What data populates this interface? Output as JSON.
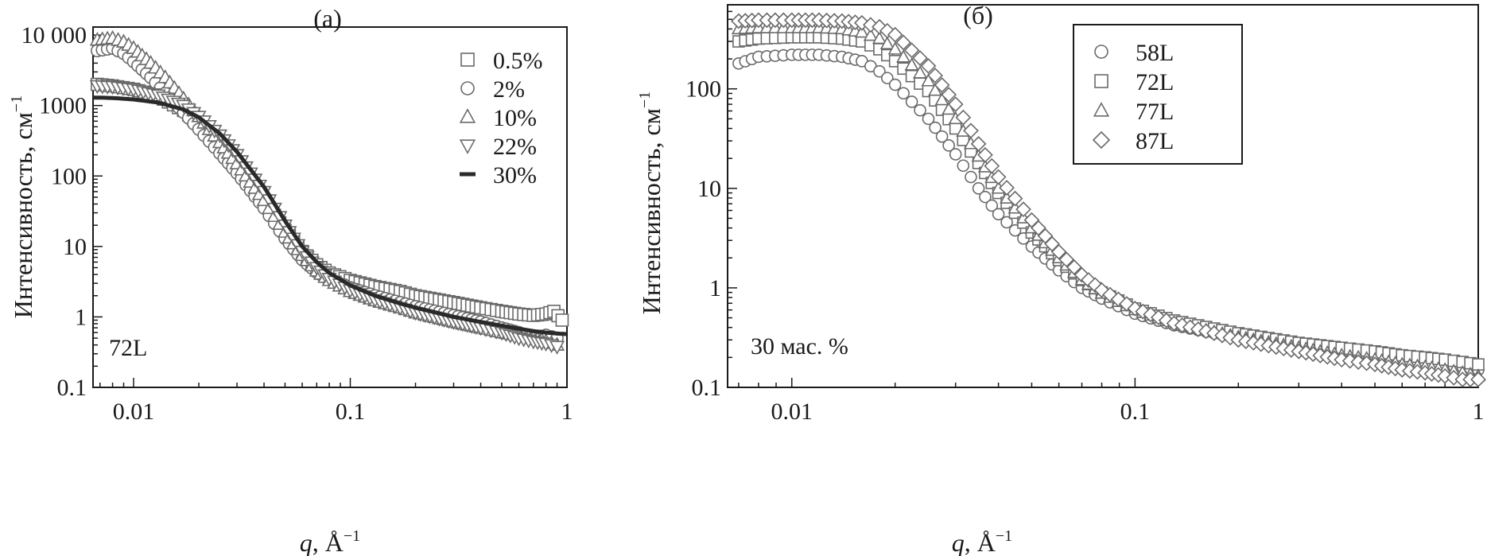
{
  "figure": {
    "colors": {
      "axis": "#1a1a1a",
      "marker": "#6a6a6a",
      "marker_fill": "#ffffff",
      "line": "#2a2a2a"
    }
  },
  "chart_data": [
    {
      "type": "scatter",
      "panel_label": "(а)",
      "annotation": "72L",
      "xlabel_italic": "q",
      "xlabel_rest": ", Å",
      "xlabel_exp": "−1",
      "ylabel": "Интенсивность, см",
      "ylabel_exp": "−1",
      "xscale": "log",
      "yscale": "log",
      "xlim": [
        0.0065,
        1.0
      ],
      "ylim": [
        0.1,
        13000
      ],
      "xticks": [
        {
          "v": 0.01,
          "label": "0.01"
        },
        {
          "v": 0.1,
          "label": "0.1"
        },
        {
          "v": 1,
          "label": "1"
        }
      ],
      "yticks": [
        {
          "v": 0.1,
          "label": "0.1"
        },
        {
          "v": 1,
          "label": "1"
        },
        {
          "v": 10,
          "label": "10"
        },
        {
          "v": 100,
          "label": "100"
        },
        {
          "v": 1000,
          "label": "1000"
        },
        {
          "v": 10000,
          "label": "10 000"
        }
      ],
      "legend_position": "top-right",
      "series": [
        {
          "name": "0.5%",
          "marker": "square",
          "points": [
            [
              0.0068,
              2000
            ],
            [
              0.008,
              1900
            ],
            [
              0.01,
              1700
            ],
            [
              0.013,
              1350
            ],
            [
              0.017,
              850
            ],
            [
              0.02,
              550
            ],
            [
              0.025,
              280
            ],
            [
              0.03,
              140
            ],
            [
              0.04,
              45
            ],
            [
              0.05,
              17
            ],
            [
              0.06,
              8.5
            ],
            [
              0.07,
              5.5
            ],
            [
              0.08,
              4.2
            ],
            [
              0.1,
              3.3
            ],
            [
              0.13,
              2.7
            ],
            [
              0.17,
              2.3
            ],
            [
              0.2,
              2.0
            ],
            [
              0.3,
              1.6
            ],
            [
              0.4,
              1.35
            ],
            [
              0.5,
              1.2
            ],
            [
              0.6,
              1.1
            ],
            [
              0.7,
              1.05
            ],
            [
              0.8,
              1.1
            ],
            [
              0.87,
              1.2
            ],
            [
              0.95,
              0.9
            ]
          ]
        },
        {
          "name": "2%",
          "marker": "circle",
          "points": [
            [
              0.0068,
              6000
            ],
            [
              0.008,
              6500
            ],
            [
              0.009,
              5500
            ],
            [
              0.01,
              4200
            ],
            [
              0.012,
              2500
            ],
            [
              0.014,
              1500
            ],
            [
              0.017,
              800
            ],
            [
              0.02,
              460
            ],
            [
              0.025,
              210
            ],
            [
              0.03,
              110
            ],
            [
              0.04,
              35
            ],
            [
              0.05,
              13
            ],
            [
              0.06,
              6.5
            ],
            [
              0.07,
              4.3
            ],
            [
              0.08,
              3.4
            ],
            [
              0.1,
              2.6
            ],
            [
              0.13,
              2.0
            ],
            [
              0.17,
              1.6
            ],
            [
              0.2,
              1.4
            ],
            [
              0.3,
              1.05
            ],
            [
              0.4,
              0.85
            ],
            [
              0.5,
              0.7
            ],
            [
              0.6,
              0.6
            ],
            [
              0.7,
              0.5
            ],
            [
              0.8,
              0.55
            ],
            [
              0.9,
              0.5
            ]
          ]
        },
        {
          "name": "10%",
          "marker": "triangle-up",
          "points": [
            [
              0.0068,
              8500
            ],
            [
              0.008,
              9000
            ],
            [
              0.009,
              8000
            ],
            [
              0.01,
              6500
            ],
            [
              0.012,
              4000
            ],
            [
              0.014,
              2500
            ],
            [
              0.017,
              1250
            ],
            [
              0.02,
              700
            ],
            [
              0.025,
              300
            ],
            [
              0.03,
              150
            ],
            [
              0.04,
              45
            ],
            [
              0.05,
              16
            ],
            [
              0.06,
              7.5
            ],
            [
              0.07,
              4.5
            ],
            [
              0.08,
              3.3
            ],
            [
              0.1,
              2.3
            ],
            [
              0.13,
              1.7
            ],
            [
              0.17,
              1.35
            ],
            [
              0.2,
              1.15
            ],
            [
              0.3,
              0.85
            ],
            [
              0.4,
              0.7
            ],
            [
              0.5,
              0.6
            ],
            [
              0.6,
              0.55
            ],
            [
              0.7,
              0.5
            ],
            [
              0.8,
              0.45
            ],
            [
              0.9,
              0.4
            ]
          ]
        },
        {
          "name": "22%",
          "marker": "triangle-down",
          "points": [
            [
              0.0068,
              1900
            ],
            [
              0.008,
              1850
            ],
            [
              0.01,
              1700
            ],
            [
              0.013,
              1400
            ],
            [
              0.017,
              1000
            ],
            [
              0.02,
              700
            ],
            [
              0.025,
              380
            ],
            [
              0.03,
              200
            ],
            [
              0.04,
              60
            ],
            [
              0.05,
              20
            ],
            [
              0.06,
              8.5
            ],
            [
              0.07,
              5.0
            ],
            [
              0.08,
              3.5
            ],
            [
              0.1,
              2.4
            ],
            [
              0.13,
              1.75
            ],
            [
              0.17,
              1.35
            ],
            [
              0.2,
              1.15
            ],
            [
              0.3,
              0.85
            ],
            [
              0.4,
              0.7
            ],
            [
              0.5,
              0.6
            ],
            [
              0.6,
              0.5
            ],
            [
              0.7,
              0.45
            ],
            [
              0.8,
              0.42
            ],
            [
              0.9,
              0.38
            ]
          ]
        },
        {
          "name": "30%",
          "marker": "line",
          "points": [
            [
              0.0065,
              1300
            ],
            [
              0.008,
              1280
            ],
            [
              0.01,
              1220
            ],
            [
              0.013,
              1100
            ],
            [
              0.017,
              880
            ],
            [
              0.02,
              680
            ],
            [
              0.025,
              400
            ],
            [
              0.03,
              220
            ],
            [
              0.04,
              70
            ],
            [
              0.05,
              23
            ],
            [
              0.06,
              10
            ],
            [
              0.07,
              6.0
            ],
            [
              0.08,
              4.2
            ],
            [
              0.1,
              2.8
            ],
            [
              0.13,
              2.0
            ],
            [
              0.17,
              1.55
            ],
            [
              0.2,
              1.35
            ],
            [
              0.3,
              1.0
            ],
            [
              0.4,
              0.85
            ],
            [
              0.5,
              0.75
            ],
            [
              0.6,
              0.68
            ],
            [
              0.7,
              0.63
            ],
            [
              0.8,
              0.6
            ],
            [
              0.9,
              0.58
            ],
            [
              1.0,
              0.57
            ]
          ]
        }
      ]
    },
    {
      "type": "scatter",
      "panel_label": "(б)",
      "annotation": "30 мас. %",
      "xlabel_italic": "q",
      "xlabel_rest": ", Å",
      "xlabel_exp": "−1",
      "ylabel": "Интенсивность, см",
      "ylabel_exp": "−1",
      "xscale": "log",
      "yscale": "log",
      "xlim": [
        0.0065,
        1.0
      ],
      "ylim": [
        0.1,
        700
      ],
      "xticks": [
        {
          "v": 0.01,
          "label": "0.01"
        },
        {
          "v": 0.1,
          "label": "0.1"
        },
        {
          "v": 1,
          "label": "1"
        }
      ],
      "yticks": [
        {
          "v": 0.1,
          "label": "0.1"
        },
        {
          "v": 1,
          "label": "1"
        },
        {
          "v": 10,
          "label": "10"
        },
        {
          "v": 100,
          "label": "100"
        }
      ],
      "legend_position": "top-right",
      "series": [
        {
          "name": "58L",
          "marker": "circle",
          "points": [
            [
              0.007,
              180
            ],
            [
              0.008,
              210
            ],
            [
              0.01,
              220
            ],
            [
              0.012,
              220
            ],
            [
              0.014,
              210
            ],
            [
              0.016,
              190
            ],
            [
              0.018,
              150
            ],
            [
              0.02,
              110
            ],
            [
              0.025,
              50
            ],
            [
              0.03,
              22
            ],
            [
              0.035,
              10
            ],
            [
              0.04,
              5.5
            ],
            [
              0.05,
              2.6
            ],
            [
              0.06,
              1.5
            ],
            [
              0.07,
              1.0
            ],
            [
              0.08,
              0.78
            ],
            [
              0.1,
              0.55
            ],
            [
              0.13,
              0.42
            ],
            [
              0.17,
              0.35
            ],
            [
              0.2,
              0.31
            ],
            [
              0.3,
              0.25
            ],
            [
              0.4,
              0.22
            ],
            [
              0.5,
              0.2
            ],
            [
              0.6,
              0.19
            ],
            [
              0.7,
              0.18
            ],
            [
              0.8,
              0.17
            ],
            [
              0.9,
              0.16
            ],
            [
              1.0,
              0.15
            ]
          ]
        },
        {
          "name": "72L",
          "marker": "square",
          "points": [
            [
              0.007,
              300
            ],
            [
              0.008,
              320
            ],
            [
              0.01,
              330
            ],
            [
              0.012,
              330
            ],
            [
              0.014,
              320
            ],
            [
              0.016,
              300
            ],
            [
              0.018,
              250
            ],
            [
              0.02,
              190
            ],
            [
              0.025,
              95
            ],
            [
              0.03,
              40
            ],
            [
              0.035,
              18
            ],
            [
              0.04,
              9
            ],
            [
              0.05,
              3.6
            ],
            [
              0.06,
              1.9
            ],
            [
              0.07,
              1.2
            ],
            [
              0.08,
              0.9
            ],
            [
              0.1,
              0.62
            ],
            [
              0.13,
              0.47
            ],
            [
              0.17,
              0.39
            ],
            [
              0.2,
              0.35
            ],
            [
              0.3,
              0.28
            ],
            [
              0.4,
              0.25
            ],
            [
              0.5,
              0.23
            ],
            [
              0.6,
              0.21
            ],
            [
              0.7,
              0.2
            ],
            [
              0.8,
              0.19
            ],
            [
              0.9,
              0.18
            ],
            [
              1.0,
              0.17
            ]
          ]
        },
        {
          "name": "77L",
          "marker": "triangle-up",
          "points": [
            [
              0.007,
              400
            ],
            [
              0.008,
              410
            ],
            [
              0.01,
              410
            ],
            [
              0.012,
              410
            ],
            [
              0.014,
              400
            ],
            [
              0.016,
              370
            ],
            [
              0.018,
              320
            ],
            [
              0.02,
              250
            ],
            [
              0.025,
              120
            ],
            [
              0.03,
              50
            ],
            [
              0.035,
              21
            ],
            [
              0.04,
              10
            ],
            [
              0.05,
              4
            ],
            [
              0.06,
              2.0
            ],
            [
              0.07,
              1.2
            ],
            [
              0.08,
              0.88
            ],
            [
              0.1,
              0.6
            ],
            [
              0.13,
              0.44
            ],
            [
              0.17,
              0.36
            ],
            [
              0.2,
              0.32
            ],
            [
              0.3,
              0.25
            ],
            [
              0.4,
              0.21
            ],
            [
              0.5,
              0.19
            ],
            [
              0.6,
              0.17
            ],
            [
              0.7,
              0.16
            ],
            [
              0.8,
              0.15
            ],
            [
              0.9,
              0.14
            ],
            [
              1.0,
              0.13
            ]
          ]
        },
        {
          "name": "87L",
          "marker": "diamond",
          "points": [
            [
              0.007,
              480
            ],
            [
              0.008,
              490
            ],
            [
              0.01,
              490
            ],
            [
              0.012,
              490
            ],
            [
              0.014,
              480
            ],
            [
              0.016,
              460
            ],
            [
              0.018,
              420
            ],
            [
              0.02,
              350
            ],
            [
              0.025,
              170
            ],
            [
              0.03,
              70
            ],
            [
              0.035,
              28
            ],
            [
              0.04,
              13
            ],
            [
              0.05,
              4.8
            ],
            [
              0.06,
              2.3
            ],
            [
              0.07,
              1.35
            ],
            [
              0.08,
              0.95
            ],
            [
              0.1,
              0.62
            ],
            [
              0.13,
              0.44
            ],
            [
              0.17,
              0.35
            ],
            [
              0.2,
              0.3
            ],
            [
              0.3,
              0.23
            ],
            [
              0.4,
              0.19
            ],
            [
              0.5,
              0.17
            ],
            [
              0.6,
              0.15
            ],
            [
              0.7,
              0.14
            ],
            [
              0.8,
              0.13
            ],
            [
              0.9,
              0.12
            ],
            [
              1.0,
              0.12
            ]
          ]
        }
      ]
    }
  ]
}
